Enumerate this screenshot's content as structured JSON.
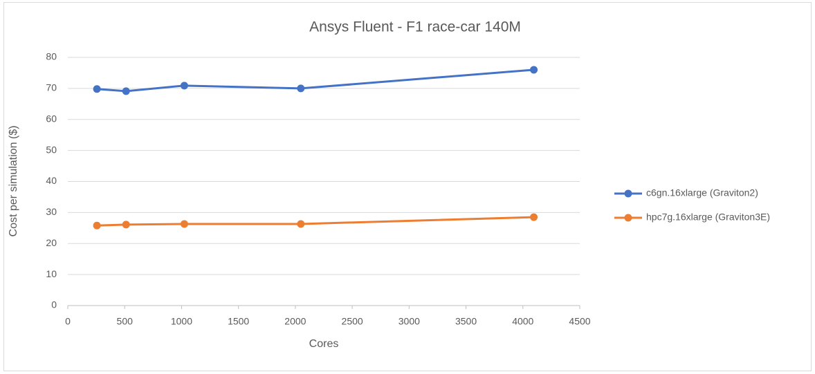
{
  "chart_data": {
    "type": "line",
    "title": "Ansys Fluent - F1 race-car 140M",
    "x_label": "Cores",
    "y_label": "Cost per simulation ($)",
    "x": [
      256,
      512,
      1024,
      2048,
      4096
    ],
    "series": [
      {
        "name": "c6gn.16xlarge (Graviton2)",
        "color": "#4472c4",
        "values": [
          69.8,
          69.1,
          70.9,
          70.0,
          76.0
        ]
      },
      {
        "name": "hpc7g.16xlarge (Graviton3E)",
        "color": "#ed7d31",
        "values": [
          25.8,
          26.1,
          26.3,
          26.3,
          28.5
        ]
      }
    ],
    "xlim": [
      0,
      4500
    ],
    "xticks": [
      0,
      500,
      1000,
      1500,
      2000,
      2500,
      3000,
      3500,
      4000,
      4500
    ],
    "ylim": [
      0,
      80
    ],
    "yticks": [
      0,
      10,
      20,
      30,
      40,
      50,
      60,
      70,
      80
    ],
    "grid": true,
    "legend": "right"
  }
}
